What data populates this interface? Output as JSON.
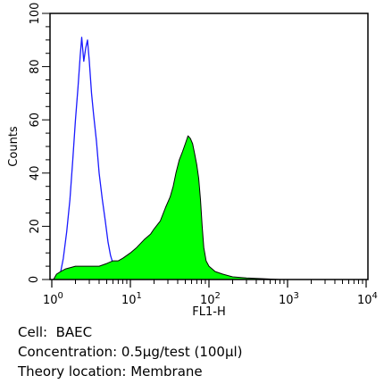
{
  "chart_data": {
    "type": "area",
    "title": "",
    "xlabel": "FL1-H",
    "ylabel": "Counts",
    "xscale": "log",
    "xlim": [
      1,
      10000
    ],
    "ylim": [
      0,
      100
    ],
    "x_ticks": [
      {
        "base": "10",
        "exp": "0"
      },
      {
        "base": "10",
        "exp": "1"
      },
      {
        "base": "10",
        "exp": "2"
      },
      {
        "base": "10",
        "exp": "3"
      },
      {
        "base": "10",
        "exp": "4"
      }
    ],
    "y_ticks": [
      "0",
      "20",
      "40",
      "60",
      "80",
      "100"
    ],
    "series": [
      {
        "style": "outline",
        "color": "#1a1aff",
        "points": [
          [
            1.12,
            0
          ],
          [
            1.3,
            3
          ],
          [
            1.4,
            8
          ],
          [
            1.55,
            18
          ],
          [
            1.7,
            30
          ],
          [
            1.85,
            45
          ],
          [
            2.0,
            60
          ],
          [
            2.15,
            72
          ],
          [
            2.3,
            84
          ],
          [
            2.4,
            91
          ],
          [
            2.55,
            82
          ],
          [
            2.7,
            87
          ],
          [
            2.85,
            90
          ],
          [
            3.0,
            82
          ],
          [
            3.2,
            70
          ],
          [
            3.4,
            62
          ],
          [
            3.7,
            52
          ],
          [
            4.0,
            40
          ],
          [
            4.4,
            30
          ],
          [
            4.8,
            22
          ],
          [
            5.2,
            14
          ],
          [
            5.6,
            9
          ],
          [
            6.0,
            6
          ],
          [
            6.3,
            3
          ],
          [
            6.6,
            1
          ],
          [
            7.0,
            0
          ]
        ]
      },
      {
        "style": "filled",
        "color": "#00ff00",
        "points": [
          [
            1.05,
            0
          ],
          [
            1.15,
            2
          ],
          [
            1.3,
            3
          ],
          [
            1.5,
            4
          ],
          [
            2.0,
            5
          ],
          [
            2.5,
            5
          ],
          [
            3.0,
            5
          ],
          [
            4.0,
            5
          ],
          [
            5.0,
            6
          ],
          [
            6.0,
            7
          ],
          [
            7.0,
            7
          ],
          [
            8.0,
            8
          ],
          [
            10,
            10
          ],
          [
            12,
            12
          ],
          [
            15,
            15
          ],
          [
            18,
            17
          ],
          [
            20,
            19
          ],
          [
            24,
            22
          ],
          [
            28,
            27
          ],
          [
            32,
            31
          ],
          [
            35,
            35
          ],
          [
            38,
            40
          ],
          [
            42,
            45
          ],
          [
            46,
            48
          ],
          [
            50,
            51
          ],
          [
            54,
            54
          ],
          [
            58,
            53
          ],
          [
            62,
            51
          ],
          [
            66,
            47
          ],
          [
            70,
            43
          ],
          [
            74,
            38
          ],
          [
            78,
            30
          ],
          [
            82,
            20
          ],
          [
            86,
            12
          ],
          [
            92,
            7
          ],
          [
            100,
            5
          ],
          [
            120,
            3
          ],
          [
            150,
            2
          ],
          [
            200,
            1
          ],
          [
            300,
            0.6
          ],
          [
            500,
            0.3
          ],
          [
            800,
            0
          ]
        ]
      }
    ]
  },
  "caption": {
    "cell": "Cell:  BAEC",
    "concentration": "Concentration: 0.5µg/test (100µl)",
    "location": "Theory location: Membrane"
  }
}
